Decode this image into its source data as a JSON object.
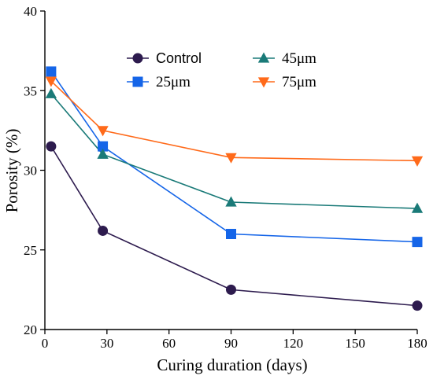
{
  "chart_data": {
    "type": "line",
    "title": "",
    "xlabel": "Curing duration (days)",
    "ylabel": "Porosity (%)",
    "xlim": [
      0,
      180
    ],
    "ylim": [
      20,
      40
    ],
    "xticks": [
      "0",
      "30",
      "60",
      "90",
      "120",
      "150",
      "180"
    ],
    "yticks": [
      "20",
      "25",
      "30",
      "35",
      "40"
    ],
    "grid": false,
    "legend_position": "top-right",
    "series": [
      {
        "name": "Control",
        "marker": "circle",
        "color": "#2d1b4e",
        "x": [
          3,
          28,
          90,
          180
        ],
        "y": [
          31.5,
          26.2,
          22.5,
          21.5
        ]
      },
      {
        "name": "25μm",
        "marker": "square",
        "color": "#1565e8",
        "x": [
          3,
          28,
          90,
          180
        ],
        "y": [
          36.2,
          31.5,
          26.0,
          25.5
        ]
      },
      {
        "name": "45μm",
        "marker": "triangle-up",
        "color": "#1a7a78",
        "x": [
          3,
          28,
          90,
          180
        ],
        "y": [
          34.8,
          31.0,
          28.0,
          27.6
        ]
      },
      {
        "name": "75μm",
        "marker": "triangle-down",
        "color": "#ff6a1a",
        "x": [
          3,
          28,
          90,
          180
        ],
        "y": [
          35.6,
          32.5,
          30.8,
          30.6
        ]
      }
    ]
  }
}
